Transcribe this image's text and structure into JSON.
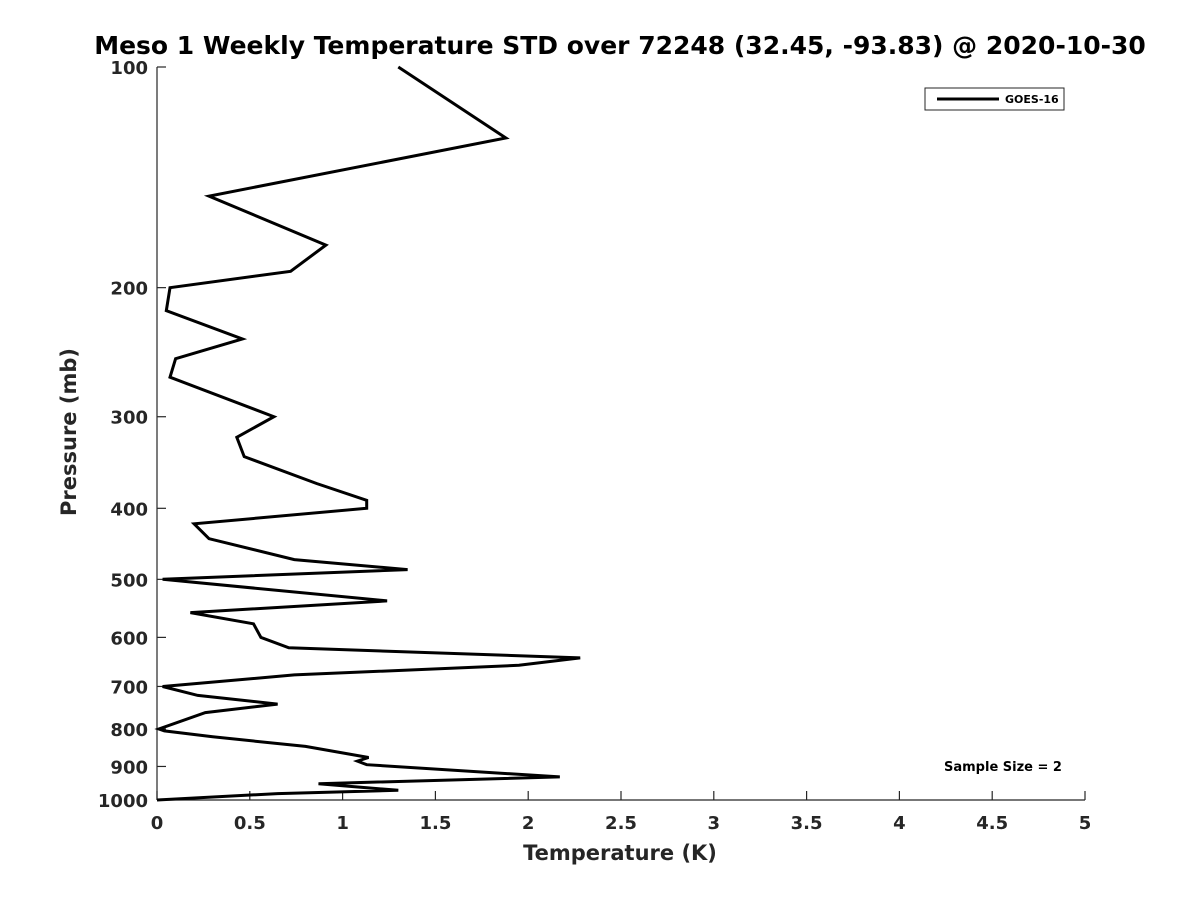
{
  "chart_data": {
    "type": "line",
    "title": "Meso 1 Weekly Temperature STD over 72248 (32.45, -93.83) @ 2020-10-30",
    "xlabel": "Temperature (K)",
    "ylabel": "Pressure (mb)",
    "xlim": [
      0,
      5
    ],
    "ylim": [
      100,
      1000
    ],
    "y_scale": "log",
    "y_reversed": true,
    "x_ticks": [
      "0",
      "0.5",
      "1",
      "1.5",
      "2",
      "2.5",
      "3",
      "3.5",
      "4",
      "4.5",
      "5"
    ],
    "y_ticks": [
      "100",
      "200",
      "300",
      "400",
      "500",
      "600",
      "700",
      "800",
      "900",
      "1000"
    ],
    "grid": false,
    "legend_position": "top-right",
    "annotation": "Sample Size = 2",
    "series": [
      {
        "name": "GOES-16",
        "color": "#000000",
        "points": [
          [
            1.3,
            100
          ],
          [
            1.88,
            125
          ],
          [
            0.28,
            150
          ],
          [
            0.91,
            175
          ],
          [
            0.72,
            190
          ],
          [
            0.07,
            200
          ],
          [
            0.05,
            215
          ],
          [
            0.46,
            235
          ],
          [
            0.1,
            250
          ],
          [
            0.07,
            265
          ],
          [
            0.63,
            300
          ],
          [
            0.43,
            320
          ],
          [
            0.47,
            340
          ],
          [
            0.86,
            370
          ],
          [
            1.13,
            390
          ],
          [
            1.13,
            400
          ],
          [
            0.2,
            420
          ],
          [
            0.28,
            440
          ],
          [
            0.74,
            470
          ],
          [
            1.35,
            485
          ],
          [
            0.03,
            500
          ],
          [
            1.24,
            535
          ],
          [
            0.18,
            555
          ],
          [
            0.52,
            575
          ],
          [
            0.56,
            600
          ],
          [
            0.71,
            620
          ],
          [
            2.28,
            640
          ],
          [
            1.95,
            655
          ],
          [
            0.74,
            675
          ],
          [
            0.03,
            700
          ],
          [
            0.22,
            720
          ],
          [
            0.65,
            740
          ],
          [
            0.26,
            760
          ],
          [
            0.01,
            800
          ],
          [
            0.04,
            805
          ],
          [
            0.3,
            820
          ],
          [
            0.8,
            845
          ],
          [
            1.14,
            875
          ],
          [
            1.08,
            885
          ],
          [
            1.13,
            895
          ],
          [
            2.17,
            930
          ],
          [
            0.87,
            950
          ],
          [
            1.3,
            970
          ],
          [
            0.65,
            980
          ],
          [
            0.0,
            1000
          ]
        ]
      }
    ]
  }
}
